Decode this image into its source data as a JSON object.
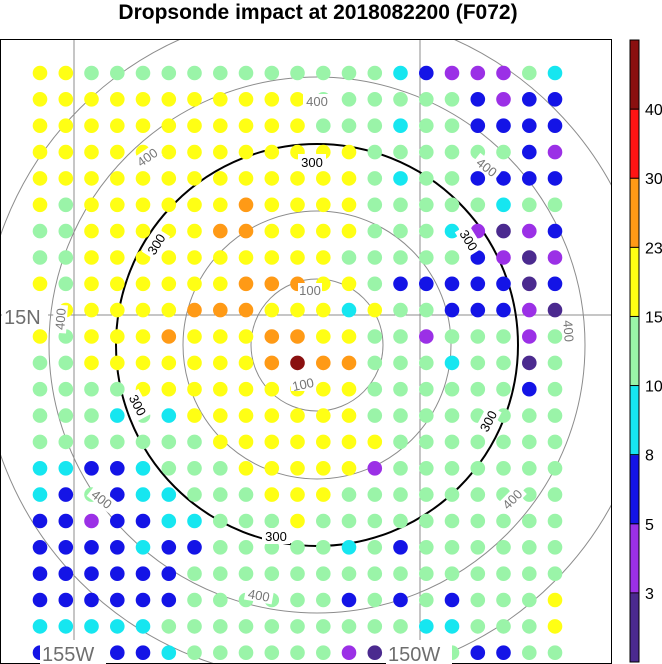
{
  "chart_data": {
    "type": "scatter",
    "title": "Dropsonde impact at 2018082200 (F072)",
    "map": {
      "lat_label": "15N",
      "lon_labels": [
        "155W",
        "150W"
      ]
    },
    "range_rings": [
      {
        "label": "100",
        "style": "gray"
      },
      {
        "label": "300",
        "style": "bold-black"
      },
      {
        "label": "400",
        "style": "gray"
      }
    ],
    "colorbar": {
      "tick_labels": [
        "3",
        "5",
        "8",
        "10",
        "15",
        "23",
        "30",
        "40"
      ],
      "bins": [
        {
          "color": "#4b2a8f"
        },
        {
          "color": "#9b30e6"
        },
        {
          "color": "#1414e6"
        },
        {
          "color": "#16e6f0"
        },
        {
          "color": "#9af4a8"
        },
        {
          "color": "#ffff14"
        },
        {
          "color": "#ff9a16"
        },
        {
          "color": "#ff1414"
        },
        {
          "color": "#8a1010"
        }
      ]
    },
    "dot_grid_note": "rows top-to-bottom, cols left-to-right; value = colorbar bin index (0-8), -1 = no dot",
    "dot_grid": [
      [
        5,
        5,
        4,
        4,
        4,
        4,
        4,
        4,
        4,
        4,
        4,
        4,
        4,
        4,
        3,
        2,
        1,
        1,
        1,
        4,
        3
      ],
      [
        5,
        5,
        5,
        5,
        5,
        5,
        5,
        5,
        5,
        5,
        5,
        4,
        4,
        4,
        4,
        4,
        4,
        2,
        1,
        2,
        2
      ],
      [
        5,
        5,
        5,
        5,
        5,
        5,
        5,
        5,
        5,
        5,
        5,
        4,
        4,
        4,
        3,
        4,
        4,
        2,
        2,
        2,
        2
      ],
      [
        5,
        5,
        5,
        5,
        5,
        5,
        5,
        5,
        5,
        5,
        5,
        5,
        5,
        4,
        4,
        4,
        4,
        4,
        4,
        2,
        1
      ],
      [
        5,
        5,
        5,
        5,
        5,
        5,
        5,
        5,
        5,
        5,
        5,
        5,
        5,
        4,
        3,
        4,
        4,
        2,
        2,
        2,
        2
      ],
      [
        5,
        4,
        5,
        5,
        5,
        5,
        5,
        5,
        6,
        5,
        5,
        5,
        5,
        4,
        4,
        4,
        4,
        4,
        3,
        4,
        4
      ],
      [
        4,
        4,
        5,
        5,
        5,
        5,
        5,
        6,
        6,
        5,
        5,
        5,
        5,
        4,
        4,
        4,
        3,
        1,
        0,
        1,
        2
      ],
      [
        4,
        4,
        5,
        5,
        5,
        5,
        5,
        5,
        5,
        5,
        5,
        5,
        4,
        4,
        4,
        4,
        4,
        2,
        1,
        0,
        1
      ],
      [
        5,
        4,
        5,
        5,
        5,
        5,
        5,
        5,
        6,
        6,
        6,
        5,
        5,
        4,
        2,
        2,
        2,
        2,
        2,
        0,
        2
      ],
      [
        5,
        5,
        5,
        5,
        5,
        5,
        6,
        6,
        6,
        5,
        5,
        5,
        3,
        5,
        4,
        4,
        2,
        2,
        2,
        1,
        0
      ],
      [
        5,
        4,
        5,
        5,
        5,
        6,
        5,
        5,
        5,
        6,
        6,
        5,
        5,
        4,
        4,
        1,
        4,
        4,
        4,
        1,
        4
      ],
      [
        4,
        4,
        5,
        5,
        5,
        5,
        5,
        5,
        5,
        6,
        8,
        6,
        6,
        4,
        4,
        4,
        3,
        4,
        4,
        0,
        4
      ],
      [
        4,
        4,
        4,
        4,
        5,
        5,
        5,
        5,
        5,
        5,
        5,
        5,
        5,
        4,
        4,
        4,
        4,
        4,
        4,
        2,
        4
      ],
      [
        4,
        4,
        4,
        3,
        4,
        3,
        5,
        5,
        5,
        5,
        5,
        5,
        5,
        4,
        4,
        4,
        4,
        4,
        4,
        4,
        4
      ],
      [
        4,
        4,
        4,
        4,
        4,
        4,
        4,
        5,
        5,
        5,
        5,
        5,
        5,
        5,
        4,
        4,
        4,
        4,
        4,
        4,
        4
      ],
      [
        3,
        3,
        2,
        2,
        3,
        4,
        4,
        4,
        5,
        5,
        5,
        5,
        5,
        1,
        4,
        4,
        4,
        4,
        4,
        4,
        4
      ],
      [
        3,
        2,
        4,
        2,
        3,
        3,
        4,
        4,
        4,
        5,
        5,
        5,
        4,
        4,
        4,
        4,
        4,
        4,
        4,
        4,
        4
      ],
      [
        2,
        2,
        1,
        2,
        2,
        3,
        3,
        4,
        4,
        4,
        5,
        4,
        4,
        4,
        4,
        4,
        4,
        4,
        4,
        4,
        4
      ],
      [
        2,
        2,
        2,
        2,
        3,
        2,
        2,
        4,
        4,
        4,
        4,
        4,
        3,
        4,
        2,
        4,
        4,
        4,
        4,
        4,
        4
      ],
      [
        2,
        2,
        2,
        2,
        2,
        2,
        4,
        4,
        4,
        4,
        4,
        4,
        4,
        4,
        4,
        4,
        4,
        4,
        4,
        4,
        4
      ],
      [
        2,
        2,
        2,
        2,
        2,
        2,
        4,
        4,
        4,
        4,
        4,
        4,
        2,
        4,
        2,
        4,
        2,
        4,
        4,
        4,
        5
      ],
      [
        3,
        3,
        3,
        3,
        3,
        4,
        4,
        4,
        4,
        4,
        4,
        4,
        4,
        4,
        4,
        3,
        3,
        4,
        4,
        4,
        5
      ],
      [
        2,
        4,
        2,
        2,
        2,
        3,
        4,
        4,
        4,
        4,
        4,
        4,
        1,
        0,
        4,
        1,
        4,
        2,
        2,
        4,
        4
      ]
    ]
  }
}
